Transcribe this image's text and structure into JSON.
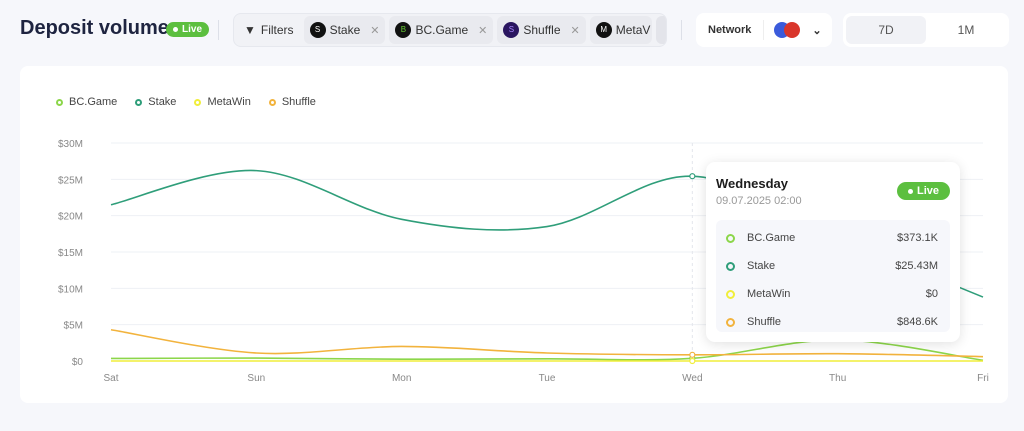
{
  "header": {
    "title": "Deposit volume",
    "live": "Live",
    "filters_label": "Filters",
    "chips": [
      {
        "label": "Stake",
        "logo": "S"
      },
      {
        "label": "BC.Game",
        "logo": "B"
      },
      {
        "label": "Shuffle",
        "logo": "S"
      },
      {
        "label": "MetaV",
        "logo": "M"
      }
    ],
    "add": "+",
    "network_label": "Network",
    "range": [
      "7D",
      "1M"
    ]
  },
  "colors": {
    "bcgame": "#8cd64a",
    "stake": "#2f9e7a",
    "metawin": "#f0ee3a",
    "shuffle": "#f2b33d",
    "live": "#5cbf3f"
  },
  "chart_data": {
    "type": "line",
    "categories": [
      "Sat",
      "Sun",
      "Mon",
      "Tue",
      "Wed",
      "Thu",
      "Fri"
    ],
    "y_ticks": [
      "$0",
      "$5M",
      "$10M",
      "$15M",
      "$20M",
      "$25M",
      "$30M"
    ],
    "ylim": [
      0,
      30
    ],
    "unit": "$M",
    "grid": true,
    "legend": "top-left",
    "series": [
      {
        "name": "BC.Game",
        "color": "#8cd64a",
        "values": [
          0.35,
          0.4,
          0.25,
          0.3,
          0.37,
          2.9,
          0.1
        ]
      },
      {
        "name": "Stake",
        "color": "#2f9e7a",
        "values": [
          21.5,
          26.2,
          19.5,
          18.5,
          25.43,
          17,
          8.8
        ]
      },
      {
        "name": "MetaWin",
        "color": "#f0ee3a",
        "values": [
          0,
          0,
          0,
          0,
          0,
          0,
          0
        ]
      },
      {
        "name": "Shuffle",
        "color": "#f2b33d",
        "values": [
          4.3,
          1.1,
          2.0,
          1.1,
          0.85,
          1.0,
          0.6
        ]
      }
    ]
  },
  "tooltip": {
    "day": "Wednesday",
    "datetime": "09.07.2025 02:00",
    "live": "Live",
    "rows": [
      {
        "name": "BC.Game",
        "value": "$373.1K",
        "color": "#8cd64a"
      },
      {
        "name": "Stake",
        "value": "$25.43M",
        "color": "#2f9e7a"
      },
      {
        "name": "MetaWin",
        "value": "$0",
        "color": "#f0ee3a"
      },
      {
        "name": "Shuffle",
        "value": "$848.6K",
        "color": "#f2b33d"
      }
    ]
  }
}
